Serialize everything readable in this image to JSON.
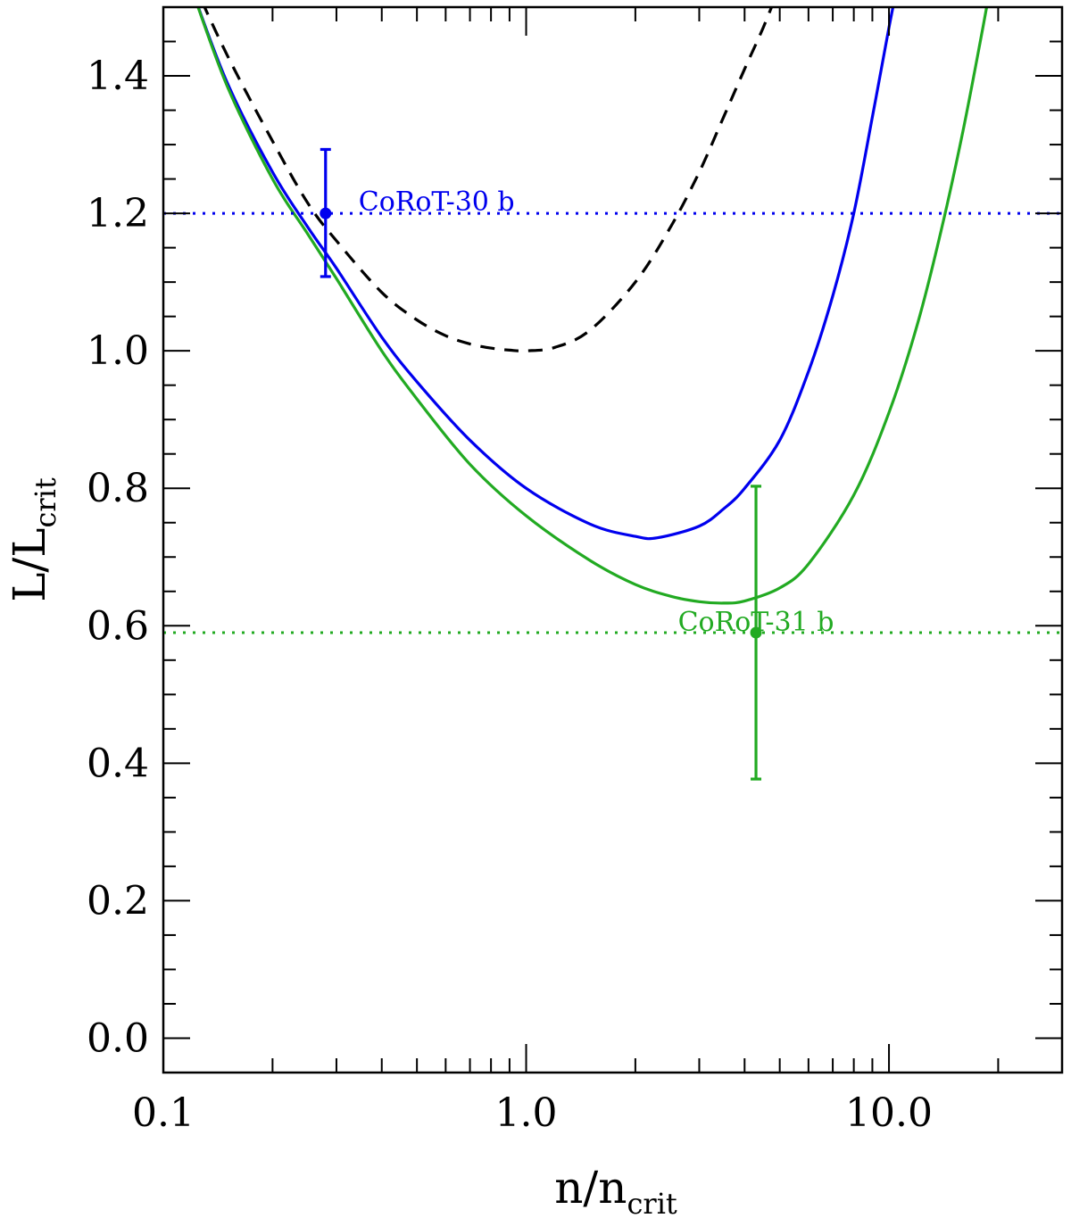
{
  "chart_data": {
    "type": "line",
    "title": "",
    "xlabel": {
      "main": "n/n",
      "sub": "crit"
    },
    "ylabel": {
      "main": "L/L",
      "sub": "crit"
    },
    "xscale": "log",
    "xlim": [
      0.1,
      30
    ],
    "ylim": [
      -0.05,
      1.5
    ],
    "grid": false,
    "xticks": [
      {
        "value": 0.1,
        "label": "0.1"
      },
      {
        "value": 1,
        "label": "1.0"
      },
      {
        "value": 10,
        "label": "10.0"
      }
    ],
    "yticks": [
      {
        "value": 0.0,
        "label": "0.0"
      },
      {
        "value": 0.2,
        "label": "0.2"
      },
      {
        "value": 0.4,
        "label": "0.4"
      },
      {
        "value": 0.6,
        "label": "0.6"
      },
      {
        "value": 0.8,
        "label": "0.8"
      },
      {
        "value": 1.0,
        "label": "1.0"
      },
      {
        "value": 1.2,
        "label": "1.2"
      },
      {
        "value": 1.4,
        "label": "1.4"
      }
    ],
    "series": [
      {
        "style": "dashed",
        "color": "#000000",
        "x": [
          0.12,
          0.15,
          0.2,
          0.25,
          0.3,
          0.4,
          0.5,
          0.6,
          0.7,
          0.8,
          0.9,
          1.0,
          1.2,
          1.5,
          2.0,
          2.5,
          3.0,
          3.5,
          4.0,
          4.5,
          5.0,
          5.2
        ],
        "y": [
          1.54,
          1.43,
          1.305,
          1.215,
          1.16,
          1.085,
          1.045,
          1.022,
          1.01,
          1.004,
          1.001,
          1.0,
          1.005,
          1.03,
          1.1,
          1.18,
          1.26,
          1.34,
          1.41,
          1.47,
          1.53,
          1.55
        ]
      },
      {
        "style": "solid",
        "color": "#0000ee",
        "x": [
          0.12,
          0.15,
          0.2,
          0.25,
          0.3,
          0.4,
          0.5,
          0.7,
          1.0,
          1.5,
          2.0,
          2.3,
          3.0,
          3.5,
          4.0,
          5.0,
          6.0,
          7.0,
          8.0,
          9.0,
          10.0,
          10.8
        ],
        "y": [
          1.525,
          1.39,
          1.26,
          1.18,
          1.12,
          1.02,
          0.955,
          0.87,
          0.8,
          0.748,
          0.73,
          0.728,
          0.745,
          0.77,
          0.8,
          0.87,
          0.97,
          1.08,
          1.2,
          1.34,
          1.47,
          1.56
        ]
      },
      {
        "style": "solid",
        "color": "#22aa22",
        "x": [
          0.12,
          0.15,
          0.2,
          0.25,
          0.3,
          0.4,
          0.5,
          0.7,
          1.0,
          1.5,
          2.0,
          2.5,
          3.0,
          3.5,
          4.0,
          5.0,
          6.0,
          8.0,
          10.0,
          12.0,
          14.0,
          16.0,
          18.0,
          19.5
        ],
        "y": [
          1.525,
          1.385,
          1.25,
          1.17,
          1.105,
          1.0,
          0.93,
          0.835,
          0.76,
          0.695,
          0.66,
          0.643,
          0.635,
          0.633,
          0.636,
          0.655,
          0.69,
          0.79,
          0.91,
          1.04,
          1.18,
          1.32,
          1.46,
          1.56
        ]
      }
    ],
    "hlines": [
      {
        "y": 1.2,
        "color": "#0000ee",
        "style": "dotted"
      },
      {
        "y": 0.59,
        "color": "#22aa22",
        "style": "dotted"
      }
    ],
    "points": [
      {
        "x": 0.28,
        "y": 1.2,
        "yerr_low": 1.108,
        "yerr_high": 1.293,
        "color": "#0000ee",
        "label": "CoRoT-30 b"
      },
      {
        "x": 4.3,
        "y": 0.59,
        "yerr_low": 0.377,
        "yerr_high": 0.803,
        "color": "#22aa22",
        "label": "CoRoT-31 b"
      }
    ]
  }
}
